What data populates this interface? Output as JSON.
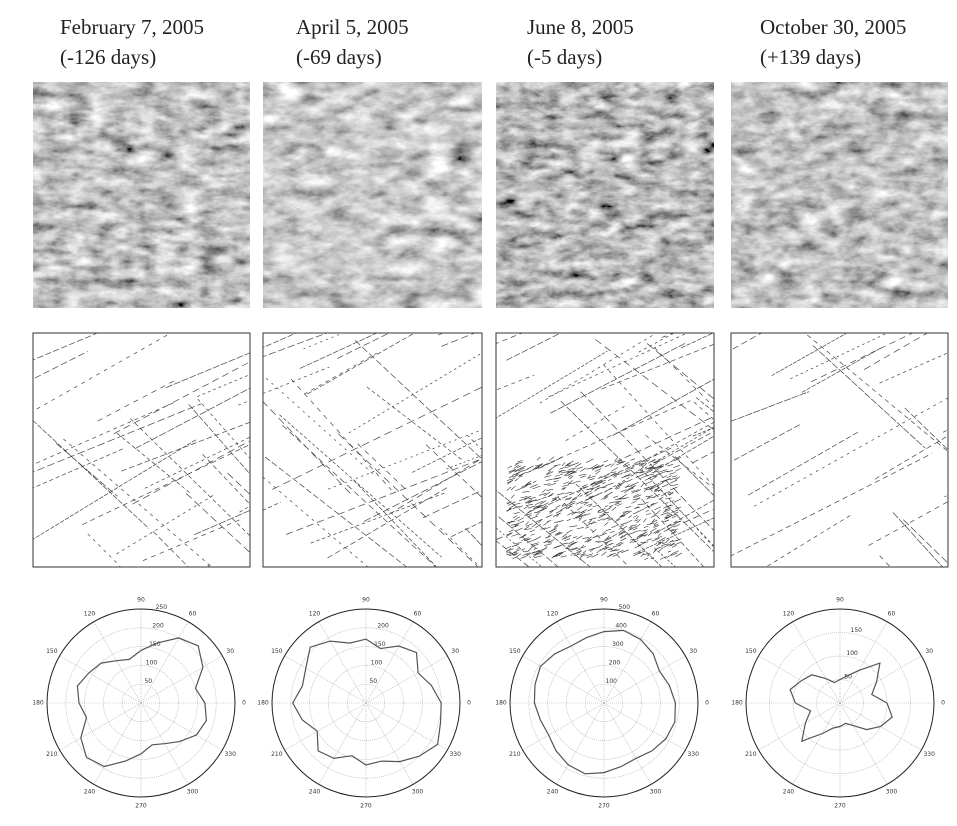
{
  "columns": [
    {
      "date": "February 7, 2005",
      "offset": "(-126 days)"
    },
    {
      "date": "April 5, 2005",
      "offset": "(-69 days)"
    },
    {
      "date": "June 8, 2005",
      "offset": "(-5 days)"
    },
    {
      "date": "October 30, 2005",
      "offset": "(+139 days)"
    }
  ],
  "chart_data": [
    {
      "type": "polar",
      "color": "#555555",
      "x": [
        0,
        15,
        30,
        45,
        60,
        75,
        90,
        105,
        120,
        135,
        150,
        165,
        180,
        195,
        210,
        225,
        240,
        255,
        270,
        285,
        300,
        315,
        330,
        345
      ],
      "values": [
        170,
        150,
        190,
        215,
        200,
        165,
        140,
        120,
        130,
        150,
        160,
        175,
        165,
        150,
        185,
        205,
        195,
        160,
        135,
        115,
        125,
        145,
        170,
        180
      ],
      "rlim": [
        0,
        250
      ],
      "rticks": [
        50,
        100,
        150,
        200,
        250
      ],
      "thetaticks": [
        0,
        30,
        60,
        90,
        120,
        150,
        180,
        210,
        240,
        270,
        300,
        330
      ]
    },
    {
      "type": "polar",
      "color": "#555555",
      "x": [
        0,
        15,
        30,
        45,
        60,
        75,
        90,
        105,
        120,
        135,
        150,
        165,
        180,
        195,
        210,
        225,
        240,
        255,
        270,
        285,
        300,
        315,
        330,
        345
      ],
      "values": [
        200,
        180,
        160,
        190,
        175,
        150,
        170,
        165,
        190,
        210,
        185,
        175,
        195,
        175,
        150,
        180,
        170,
        145,
        165,
        160,
        180,
        200,
        220,
        205
      ],
      "rlim": [
        0,
        250
      ],
      "rticks": [
        50,
        100,
        150,
        200
      ],
      "thetaticks": [
        0,
        30,
        60,
        90,
        120,
        150,
        180,
        210,
        240,
        270,
        300,
        330
      ]
    },
    {
      "type": "polar",
      "color": "#555555",
      "x": [
        0,
        15,
        30,
        45,
        60,
        75,
        90,
        105,
        120,
        135,
        150,
        165,
        180,
        195,
        210,
        225,
        240,
        255,
        270,
        285,
        300,
        315,
        330,
        345
      ],
      "values": [
        380,
        360,
        340,
        370,
        390,
        400,
        380,
        360,
        350,
        370,
        390,
        380,
        370,
        350,
        340,
        360,
        380,
        390,
        370,
        350,
        340,
        360,
        380,
        390
      ],
      "rlim": [
        0,
        500
      ],
      "rticks": [
        100,
        200,
        300,
        400,
        500
      ],
      "thetaticks": [
        0,
        30,
        60,
        90,
        120,
        150,
        180,
        210,
        240,
        270,
        300,
        330
      ]
    },
    {
      "type": "polar",
      "color": "#555555",
      "x": [
        0,
        15,
        30,
        45,
        60,
        75,
        90,
        105,
        120,
        135,
        150,
        165,
        180,
        195,
        210,
        225,
        240,
        255,
        270,
        285,
        300,
        315,
        330,
        345
      ],
      "values": [
        100,
        70,
        90,
        120,
        80,
        60,
        50,
        45,
        60,
        85,
        95,
        110,
        95,
        65,
        85,
        115,
        75,
        55,
        50,
        45,
        55,
        80,
        100,
        115
      ],
      "rlim": [
        0,
        200
      ],
      "rticks": [
        50,
        100,
        150
      ],
      "thetaticks": [
        0,
        30,
        60,
        90,
        120,
        150,
        180,
        210,
        240,
        270,
        300,
        330
      ]
    }
  ]
}
